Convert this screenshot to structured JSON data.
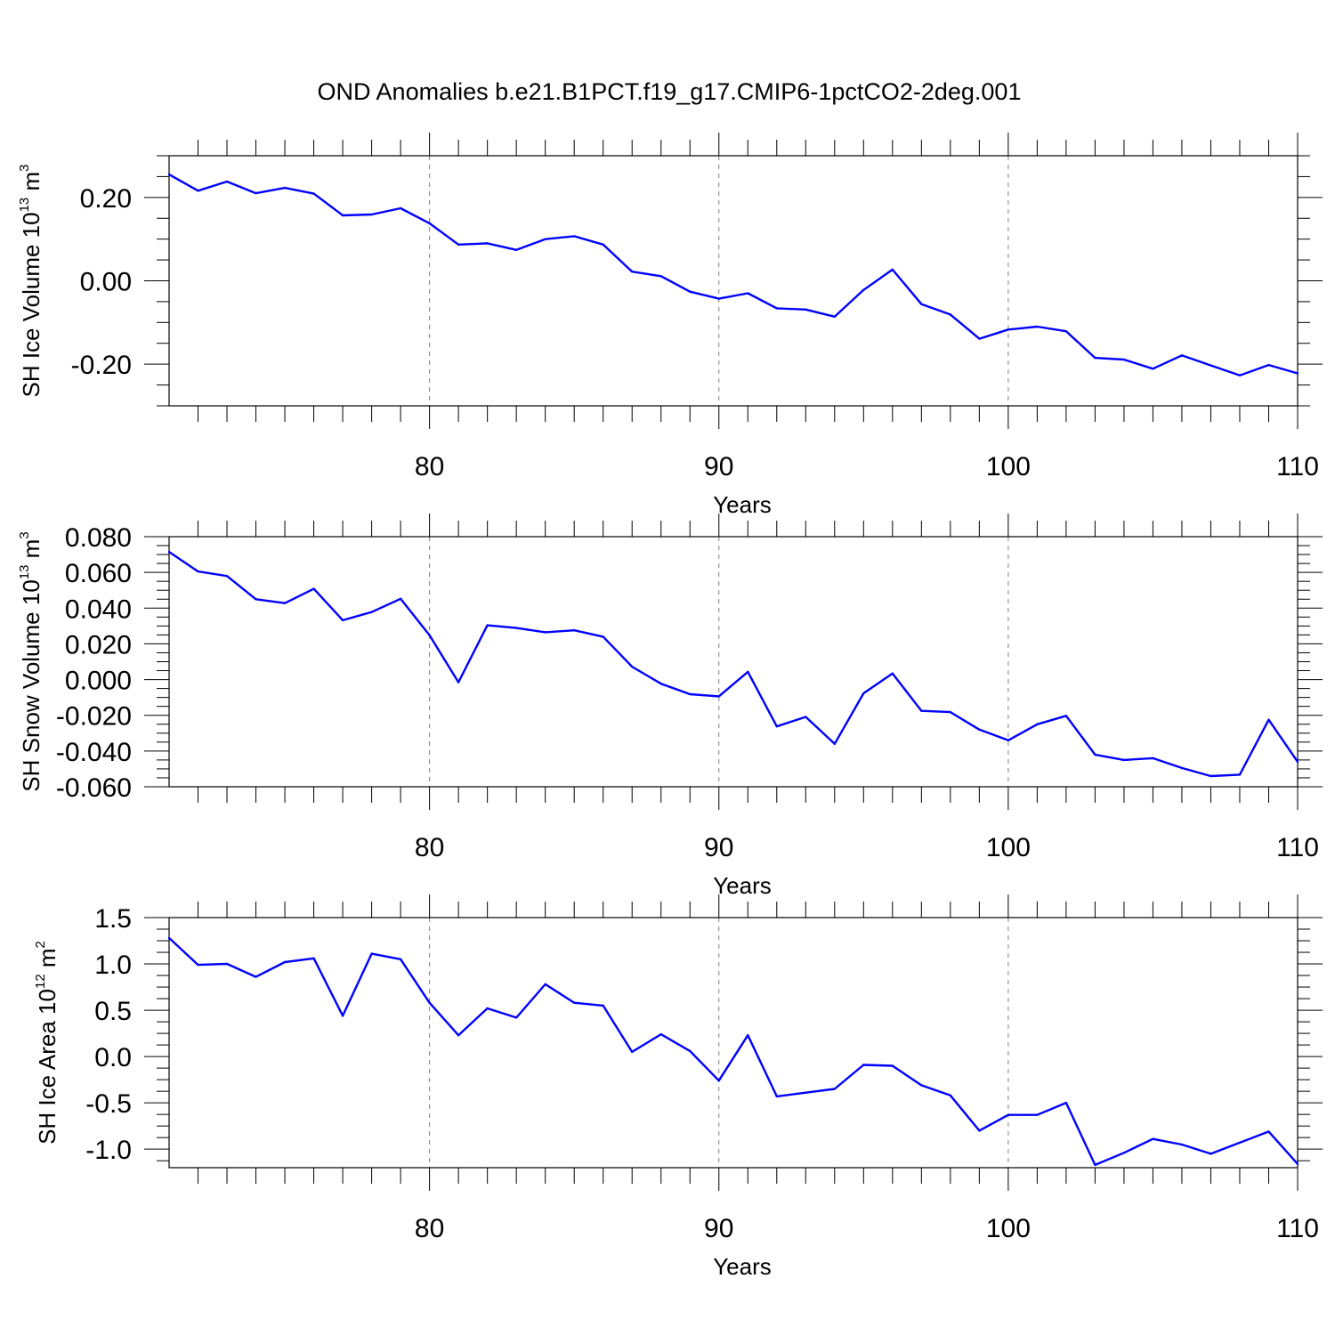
{
  "title": "OND Anomalies b.e21.B1PCT.f19_g17.CMIP6-1pctCO2-2deg.001",
  "colors": {
    "series": "#0000ff",
    "axis": "#000000",
    "grid": "#808080"
  },
  "chart_data": [
    {
      "type": "line",
      "ylabel": {
        "text": "SH Ice Volume 10",
        "sup": "13",
        "unit": "m",
        "unit_sup": "3"
      },
      "xlabel": "Years",
      "xlim": [
        71,
        110
      ],
      "ylim": [
        -0.3,
        0.3
      ],
      "xticks": [
        80,
        90,
        100,
        110
      ],
      "yticks": [
        0.2,
        0.0,
        -0.2
      ],
      "ytick_labels": [
        "0.20",
        "0.00",
        "-0.20"
      ],
      "grid_x": [
        80,
        90,
        100
      ],
      "series": [
        {
          "x": [
            71,
            72,
            73,
            74,
            75,
            76,
            77,
            78,
            79,
            80,
            81,
            82,
            83,
            84,
            85,
            86,
            87,
            88,
            89,
            90,
            91,
            92,
            93,
            94,
            95,
            96,
            97,
            98,
            99,
            100,
            101,
            102,
            103,
            104,
            105,
            106,
            107,
            108,
            109,
            110
          ],
          "values": [
            0.255,
            0.216,
            0.238,
            0.21,
            0.223,
            0.209,
            0.157,
            0.159,
            0.174,
            0.138,
            0.087,
            0.09,
            0.074,
            0.1,
            0.107,
            0.087,
            0.022,
            0.011,
            -0.026,
            -0.043,
            -0.03,
            -0.066,
            -0.069,
            -0.086,
            -0.022,
            0.027,
            -0.056,
            -0.081,
            -0.139,
            -0.117,
            -0.11,
            -0.121,
            -0.185,
            -0.189,
            -0.211,
            -0.179,
            -0.203,
            -0.227,
            -0.202,
            -0.222
          ]
        }
      ]
    },
    {
      "type": "line",
      "ylabel": {
        "text": "SH Snow Volume 10",
        "sup": "13",
        "unit": "m",
        "unit_sup": "3"
      },
      "xlabel": "Years",
      "xlim": [
        71,
        110
      ],
      "ylim": [
        -0.06,
        0.08
      ],
      "xticks": [
        80,
        90,
        100,
        110
      ],
      "yticks": [
        0.08,
        0.06,
        0.04,
        0.02,
        0.0,
        -0.02,
        -0.04,
        -0.06
      ],
      "ytick_labels": [
        "0.080",
        "0.060",
        "0.040",
        "0.020",
        "0.000",
        "-0.020",
        "-0.040",
        "-0.060"
      ],
      "grid_x": [
        80,
        90,
        100
      ],
      "series": [
        {
          "x": [
            71,
            72,
            73,
            74,
            75,
            76,
            77,
            78,
            79,
            80,
            81,
            82,
            83,
            84,
            85,
            86,
            87,
            88,
            89,
            90,
            91,
            92,
            93,
            94,
            95,
            96,
            97,
            98,
            99,
            100,
            101,
            102,
            103,
            104,
            105,
            106,
            107,
            108,
            109,
            110
          ],
          "values": [
            0.0715,
            0.0605,
            0.058,
            0.045,
            0.0428,
            0.0508,
            0.0332,
            0.0378,
            0.0452,
            0.0248,
            -0.0015,
            0.0304,
            0.0289,
            0.0265,
            0.0276,
            0.024,
            0.0072,
            -0.0023,
            -0.0082,
            -0.0094,
            0.0043,
            -0.0262,
            -0.0209,
            -0.036,
            -0.0077,
            0.0034,
            -0.0175,
            -0.0182,
            -0.028,
            -0.034,
            -0.025,
            -0.0203,
            -0.042,
            -0.045,
            -0.044,
            -0.0495,
            -0.054,
            -0.0532,
            -0.0225,
            -0.046
          ]
        }
      ]
    },
    {
      "type": "line",
      "ylabel": {
        "text": "SH Ice Area 10",
        "sup": "12",
        "unit": "m",
        "unit_sup": "2"
      },
      "xlabel": "Years",
      "xlim": [
        71,
        110
      ],
      "ylim": [
        -1.2,
        1.5
      ],
      "xticks": [
        80,
        90,
        100,
        110
      ],
      "yticks": [
        1.5,
        1.0,
        0.5,
        0.0,
        -0.5,
        -1.0
      ],
      "ytick_labels": [
        "1.5",
        "1.0",
        "0.5",
        "0.0",
        "-0.5",
        "-1.0"
      ],
      "grid_x": [
        80,
        90,
        100
      ],
      "series": [
        {
          "x": [
            71,
            72,
            73,
            74,
            75,
            76,
            77,
            78,
            79,
            80,
            81,
            82,
            83,
            84,
            85,
            86,
            87,
            88,
            89,
            90,
            91,
            92,
            93,
            94,
            95,
            96,
            97,
            98,
            99,
            100,
            101,
            102,
            103,
            104,
            105,
            106,
            107,
            108,
            109,
            110
          ],
          "values": [
            1.28,
            0.99,
            1.0,
            0.86,
            1.02,
            1.06,
            0.44,
            1.11,
            1.05,
            0.58,
            0.23,
            0.52,
            0.42,
            0.78,
            0.58,
            0.55,
            0.05,
            0.24,
            0.06,
            -0.26,
            0.23,
            -0.43,
            -0.39,
            -0.35,
            -0.09,
            -0.1,
            -0.31,
            -0.42,
            -0.8,
            -0.63,
            -0.63,
            -0.5,
            -1.17,
            -1.04,
            -0.89,
            -0.95,
            -1.05,
            -0.93,
            -0.81,
            -1.16
          ]
        }
      ]
    }
  ]
}
